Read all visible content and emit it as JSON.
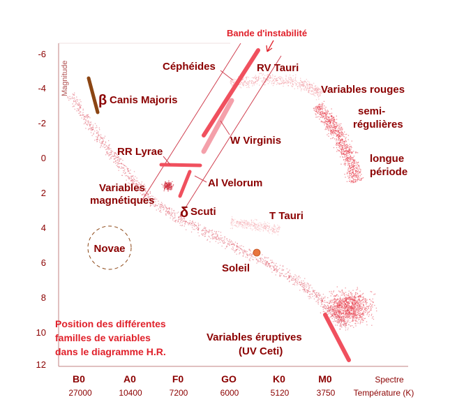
{
  "title": "Bande d'instabilité",
  "yaxis": {
    "label": "Magnitude",
    "ticks": [
      "-6",
      "-4",
      "-2",
      "0",
      "2",
      "4",
      "6",
      "8",
      "10",
      "12"
    ]
  },
  "xaxis": {
    "spectre_label": "Spectre",
    "temp_label": "Température (K)",
    "spectral": [
      "B0",
      "A0",
      "F0",
      "GO",
      "K0",
      "M0"
    ],
    "temps": [
      "27000",
      "10400",
      "7200",
      "6000",
      "5120",
      "3750"
    ]
  },
  "labels": {
    "cepheides": "Céphéides",
    "rv_tauri": "RV Tauri",
    "beta_symbol": "β",
    "canis_majoris": "Canis Majoris",
    "variables_rouges": "Variables rouges",
    "semi_1": "semi-",
    "semi_2": "régulières",
    "longue_1": "longue",
    "longue_2": "période",
    "w_virginis": "W Virginis",
    "rr_lyrae": "RR Lyrae",
    "al_velorum": "Al Velorum",
    "magn_1": "Variables",
    "magn_2": "magnétiques",
    "delta_symbol": "δ",
    "scuti": "Scuti",
    "t_tauri": "T Tauri",
    "novae": "Novae",
    "soleil": "Soleil",
    "eruptives_1": "Variables éruptives",
    "eruptives_2": "(UV Ceti)"
  },
  "caption": {
    "line1": "Position des différentes",
    "line2": "familles de variables",
    "line3": "dans le diagramme H.R."
  },
  "colors": {
    "text": "#8b0000",
    "title": "#e0202a",
    "band": "#f0505e",
    "band_light": "#f4a0aa",
    "beta": "#8b4513",
    "sun": "#e8743c",
    "frame": "#c08080"
  }
}
